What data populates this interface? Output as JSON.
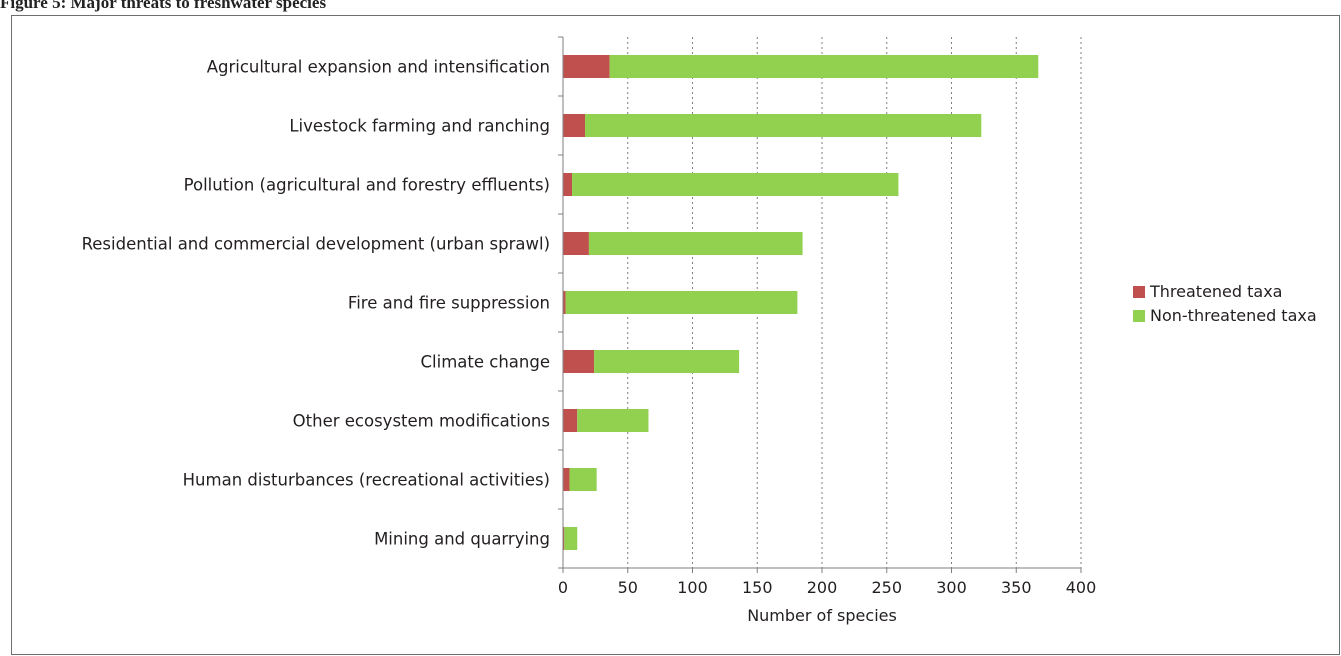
{
  "page_heading": "Figure 5: Major threats to freshwater species",
  "chart_data": {
    "type": "bar",
    "orientation": "horizontal",
    "stacked": true,
    "title": "",
    "xlabel": "Number of species",
    "ylabel": "",
    "xlim": [
      0,
      400
    ],
    "xticks": [
      0,
      50,
      100,
      150,
      200,
      250,
      300,
      350,
      400
    ],
    "grid": "vertical dotted",
    "legend_position": "right",
    "categories": [
      "Agricultural expansion and intensification",
      "Livestock farming and ranching",
      "Pollution (agricultural and forestry effluents)",
      "Residential and commercial development (urban sprawl)",
      "Fire and fire suppression",
      "Climate change",
      "Other ecosystem modifications",
      "Human disturbances (recreational activities)",
      "Mining and quarrying"
    ],
    "series": [
      {
        "name": "Threatened taxa",
        "color": "#c0504d",
        "values": [
          36,
          17,
          7,
          20,
          2,
          24,
          11,
          5,
          1
        ]
      },
      {
        "name": "Non-threatened taxa",
        "color": "#92d050",
        "values": [
          331,
          306,
          252,
          165,
          179,
          112,
          55,
          21,
          10
        ]
      }
    ]
  }
}
